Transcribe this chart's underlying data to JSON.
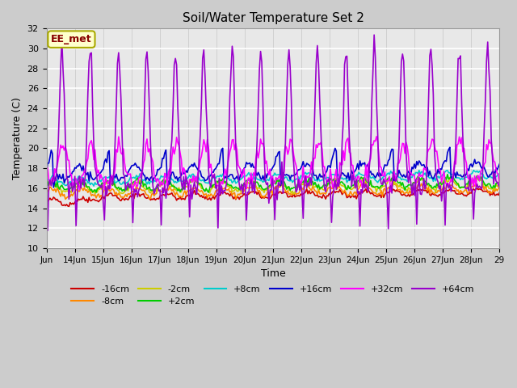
{
  "title": "Soil/Water Temperature Set 2",
  "xlabel": "Time",
  "ylabel": "Temperature (C)",
  "ylim": [
    10,
    32
  ],
  "xlim": [
    0,
    16
  ],
  "yticks": [
    10,
    12,
    14,
    16,
    18,
    20,
    22,
    24,
    26,
    28,
    30,
    32
  ],
  "xtick_positions": [
    0,
    1,
    2,
    3,
    4,
    5,
    6,
    7,
    8,
    9,
    10,
    11,
    12,
    13,
    14,
    15,
    16
  ],
  "xtick_labels": [
    "Jun",
    "14Jun",
    "15Jun",
    "16Jun",
    "17Jun",
    "18Jun",
    "19Jun",
    "20Jun",
    "21Jun",
    "22Jun",
    "23Jun",
    "24Jun",
    "25Jun",
    "26Jun",
    "27Jun",
    "28Jun",
    "29"
  ],
  "annotation_text": "EE_met",
  "annotation_bg": "#ffffcc",
  "annotation_border": "#aaaa00",
  "series": {
    "-16cm": {
      "color": "#cc0000",
      "lw": 1.2
    },
    "-8cm": {
      "color": "#ff8800",
      "lw": 1.2
    },
    "-2cm": {
      "color": "#cccc00",
      "lw": 1.2
    },
    "+2cm": {
      "color": "#00cc00",
      "lw": 1.2
    },
    "+8cm": {
      "color": "#00cccc",
      "lw": 1.2
    },
    "+16cm": {
      "color": "#0000cc",
      "lw": 1.2
    },
    "+32cm": {
      "color": "#ff00ff",
      "lw": 1.2
    },
    "+64cm": {
      "color": "#9900cc",
      "lw": 1.2
    }
  }
}
